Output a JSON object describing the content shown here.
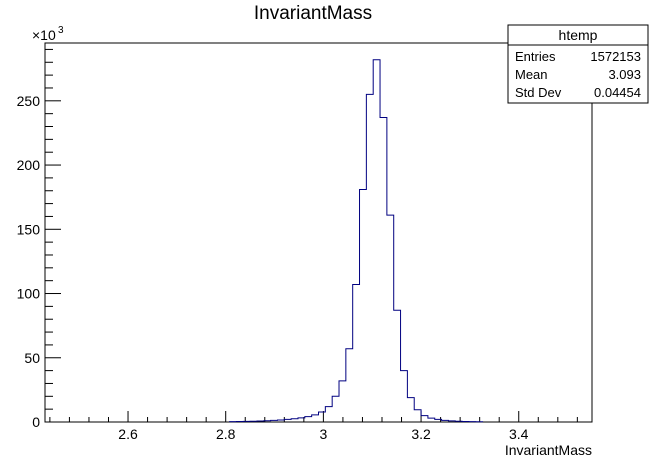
{
  "chart_data": {
    "type": "bar",
    "title": "InvariantMass",
    "xlabel": "InvariantMass",
    "ylabel": "",
    "y_multiplier_label": "×10",
    "y_multiplier_exponent": "3",
    "xlim": [
      2.43,
      3.55
    ],
    "ylim": [
      0,
      295
    ],
    "x_ticks": [
      {
        "value": 2.6,
        "label": "2.6"
      },
      {
        "value": 2.8,
        "label": "2.8"
      },
      {
        "value": 3.0,
        "label": "3"
      },
      {
        "value": 3.2,
        "label": "3.2"
      },
      {
        "value": 3.4,
        "label": "3.4"
      }
    ],
    "y_ticks": [
      {
        "value": 0,
        "label": "0"
      },
      {
        "value": 50,
        "label": "50"
      },
      {
        "value": 100,
        "label": "100"
      },
      {
        "value": 150,
        "label": "150"
      },
      {
        "value": 200,
        "label": "200"
      },
      {
        "value": 250,
        "label": "250"
      }
    ],
    "bin_width": 0.014,
    "bin_edges": [
      2.808,
      2.822,
      2.836,
      2.85,
      2.864,
      2.878,
      2.892,
      2.906,
      2.92,
      2.934,
      2.948,
      2.962,
      2.976,
      2.99,
      3.004,
      3.018,
      3.032,
      3.046,
      3.06,
      3.074,
      3.088,
      3.102,
      3.116,
      3.13,
      3.144,
      3.158,
      3.172,
      3.186,
      3.2,
      3.214,
      3.228,
      3.242,
      3.256,
      3.27,
      3.284,
      3.298,
      3.312,
      3.326
    ],
    "values": [
      0.3,
      0.4,
      0.5,
      0.6,
      0.8,
      1.0,
      1.3,
      1.6,
      2.0,
      2.5,
      3.2,
      4.2,
      5.5,
      7.8,
      12,
      20,
      32,
      57,
      107,
      181,
      255,
      282,
      237,
      161,
      87,
      40,
      19,
      9.5,
      5.0,
      3.0,
      2.0,
      1.3,
      0.9,
      0.6,
      0.4,
      0.3,
      0.2
    ],
    "color": "#000080",
    "stats_box": {
      "title": "htemp",
      "rows": [
        {
          "label": "Entries",
          "value": "1572153"
        },
        {
          "label": "Mean",
          "value": "3.093"
        },
        {
          "label": "Std Dev",
          "value": "0.04454"
        }
      ]
    }
  }
}
